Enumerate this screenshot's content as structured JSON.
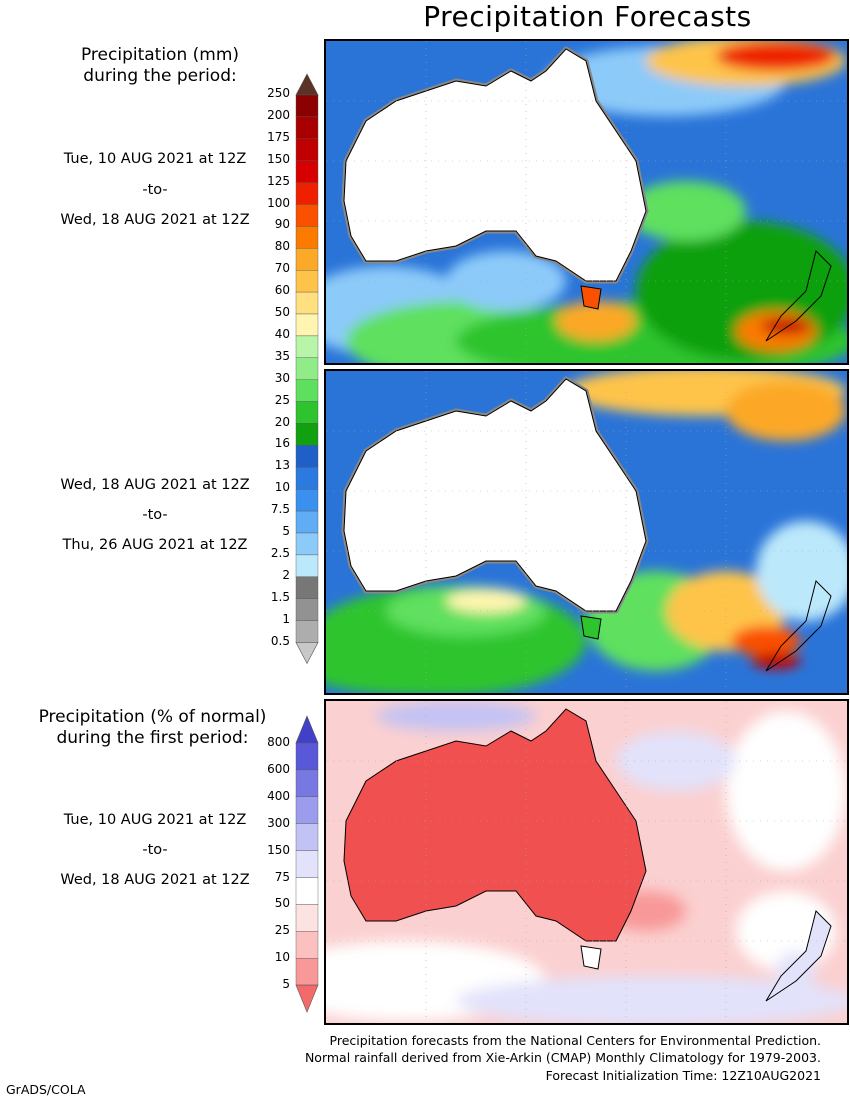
{
  "title": "Precipitation Forecasts",
  "precip_legend": {
    "header_line1": "Precipitation (mm)",
    "header_line2": "during the period:",
    "levels": [
      "250",
      "200",
      "175",
      "150",
      "125",
      "100",
      "90",
      "80",
      "70",
      "60",
      "50",
      "40",
      "35",
      "30",
      "25",
      "20",
      "16",
      "13",
      "10",
      "7.5",
      "5",
      "2.5",
      "2",
      "1.5",
      "1",
      "0.5"
    ],
    "colors": [
      "#8b0000",
      "#a80000",
      "#c00000",
      "#d70000",
      "#ee2000",
      "#fa5000",
      "#fb7a00",
      "#fca828",
      "#fec44a",
      "#ffe080",
      "#fff5b0",
      "#b8f5a8",
      "#8fec86",
      "#5ee05e",
      "#2ec42e",
      "#10a010",
      "#1e5fc8",
      "#2a7ae0",
      "#3a90ee",
      "#60acf5",
      "#8ccaf9",
      "#bce8fb",
      "#777777",
      "#929292",
      "#adadad",
      "#c8c8c8"
    ],
    "top_arrow_color": "#5a3326"
  },
  "period1": {
    "start": "Tue, 10 AUG 2021 at 12Z",
    "to": "-to-",
    "end": "Wed, 18 AUG 2021 at 12Z"
  },
  "period2": {
    "start": "Wed, 18 AUG 2021 at 12Z",
    "to": "-to-",
    "end": "Thu, 26 AUG 2021 at 12Z"
  },
  "anomaly_legend": {
    "header_line1": "Precipitation (% of normal)",
    "header_line2": "during the first period:",
    "levels": [
      "800",
      "600",
      "400",
      "300",
      "150",
      "75",
      "50",
      "25",
      "10",
      "5"
    ],
    "colors": [
      "#5858d8",
      "#7878e2",
      "#9c9cec",
      "#c2c2f4",
      "#e2e2fb",
      "#ffffff",
      "#fde2e2",
      "#fbc0c0",
      "#f89898",
      "#f46a6a"
    ],
    "top_arrow_color": "#4040c8",
    "bottom_arrow_color": "#ee4040"
  },
  "period3": {
    "start": "Tue, 10 AUG 2021 at 12Z",
    "to": "-to-",
    "end": "Wed, 18 AUG 2021 at 12Z"
  },
  "credits": {
    "line1": "Precipitation forecasts from the National Centers for Environmental Prediction.",
    "line2": "Normal rainfall derived from Xie-Arkin (CMAP) Monthly Climatology for 1979-2003.",
    "line3": "Forecast Initialization Time: 12Z10AUG2021"
  },
  "software_label": "GrADS/COLA"
}
